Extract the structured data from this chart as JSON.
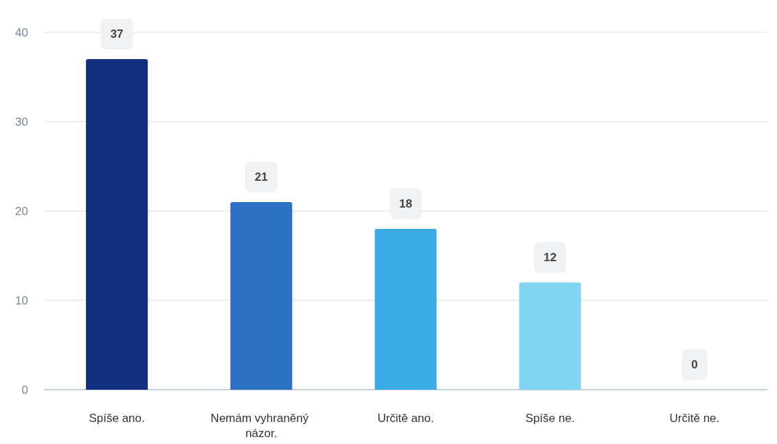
{
  "chart_data": {
    "type": "bar",
    "categories": [
      "Spíše ano.",
      "Nemám vyhraněný názor.",
      "Určitě ano.",
      "Spíše ne.",
      "Určitě ne."
    ],
    "values": [
      37,
      21,
      18,
      12,
      0
    ],
    "colors": [
      "#132e7e",
      "#2c72c2",
      "#3aace3",
      "#80d6f1",
      "#c9eef9"
    ],
    "ylim": [
      0,
      40
    ],
    "yticks": [
      0,
      10,
      20,
      30,
      40
    ],
    "grid": "y",
    "data_labels": true
  }
}
